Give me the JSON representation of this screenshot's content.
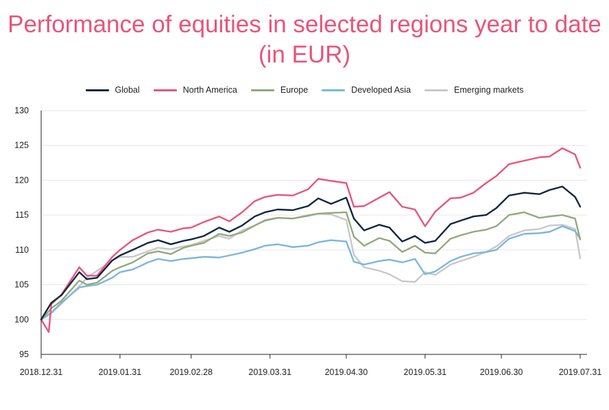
{
  "title": "Performance of equities in selected regions year to date (in EUR)",
  "chart_data": {
    "type": "line",
    "title": "Performance of equities in selected regions year to date (in EUR)",
    "xlabel": "",
    "ylabel": "",
    "x_tick_labels": [
      "2018.12.31",
      "2019.01.31",
      "2019.02.28",
      "2019.03.31",
      "2019.04.30",
      "2019.05.31",
      "2019.06.30",
      "2019.07.31"
    ],
    "x_range": [
      "2018.12.31",
      "2019.07.31"
    ],
    "ylim": [
      95,
      130
    ],
    "y_ticks": [
      95,
      100,
      105,
      110,
      115,
      120,
      125,
      130
    ],
    "grid": "horizontal",
    "legend_position": "top",
    "series": [
      {
        "name": "Global",
        "color": "#0f2640",
        "x": [
          "2018.12.31",
          "2019.01.04",
          "2019.01.08",
          "2019.01.15",
          "2019.01.18",
          "2019.01.22",
          "2019.01.28",
          "2019.01.31",
          "2019.02.05",
          "2019.02.11",
          "2019.02.15",
          "2019.02.20",
          "2019.02.25",
          "2019.02.28",
          "2019.03.05",
          "2019.03.11",
          "2019.03.15",
          "2019.03.20",
          "2019.03.25",
          "2019.03.29",
          "2019.04.03",
          "2019.04.09",
          "2019.04.15",
          "2019.04.19",
          "2019.04.24",
          "2019.04.30",
          "2019.05.03",
          "2019.05.07",
          "2019.05.13",
          "2019.05.17",
          "2019.05.22",
          "2019.05.27",
          "2019.05.31",
          "2019.06.04",
          "2019.06.10",
          "2019.06.14",
          "2019.06.19",
          "2019.06.24",
          "2019.06.28",
          "2019.07.03",
          "2019.07.09",
          "2019.07.15",
          "2019.07.19",
          "2019.07.24",
          "2019.07.29",
          "2019.07.31"
        ],
        "y": [
          100,
          102.4,
          103.5,
          106.8,
          105.8,
          106.0,
          108.5,
          109.2,
          110.0,
          111.0,
          111.4,
          110.8,
          111.3,
          111.5,
          112.0,
          113.2,
          112.6,
          113.5,
          114.8,
          115.4,
          115.8,
          115.7,
          116.3,
          117.4,
          116.6,
          117.5,
          114.5,
          112.8,
          113.6,
          113.2,
          111.2,
          112.0,
          111.0,
          111.3,
          113.7,
          114.2,
          114.8,
          115.0,
          116.0,
          117.8,
          118.2,
          118.0,
          118.6,
          119.1,
          117.6,
          116.2
        ]
      },
      {
        "name": "North America",
        "color": "#e8547a",
        "x": [
          "2018.12.31",
          "2019.01.03",
          "2019.01.04",
          "2019.01.08",
          "2019.01.15",
          "2019.01.18",
          "2019.01.22",
          "2019.01.28",
          "2019.01.31",
          "2019.02.05",
          "2019.02.11",
          "2019.02.15",
          "2019.02.20",
          "2019.02.25",
          "2019.02.28",
          "2019.03.05",
          "2019.03.11",
          "2019.03.15",
          "2019.03.20",
          "2019.03.25",
          "2019.03.29",
          "2019.04.03",
          "2019.04.09",
          "2019.04.15",
          "2019.04.19",
          "2019.04.24",
          "2019.04.30",
          "2019.05.03",
          "2019.05.07",
          "2019.05.13",
          "2019.05.17",
          "2019.05.22",
          "2019.05.27",
          "2019.05.31",
          "2019.06.04",
          "2019.06.10",
          "2019.06.14",
          "2019.06.19",
          "2019.06.24",
          "2019.06.28",
          "2019.07.03",
          "2019.07.09",
          "2019.07.15",
          "2019.07.19",
          "2019.07.24",
          "2019.07.29",
          "2019.07.31"
        ],
        "y": [
          100,
          98.2,
          102.2,
          103.6,
          107.5,
          106.3,
          106.3,
          109.0,
          110.0,
          111.4,
          112.5,
          112.9,
          112.6,
          113.1,
          113.2,
          114.0,
          114.8,
          114.1,
          115.4,
          117.0,
          117.6,
          117.9,
          117.8,
          118.7,
          120.2,
          119.9,
          119.6,
          116.2,
          116.3,
          117.5,
          118.3,
          116.2,
          115.8,
          113.4,
          115.5,
          117.4,
          117.5,
          118.2,
          119.6,
          120.6,
          122.3,
          122.8,
          123.3,
          123.4,
          124.6,
          123.7,
          121.8
        ]
      },
      {
        "name": "Europe",
        "color": "#93a97a",
        "x": [
          "2018.12.31",
          "2019.01.04",
          "2019.01.08",
          "2019.01.15",
          "2019.01.18",
          "2019.01.22",
          "2019.01.28",
          "2019.01.31",
          "2019.02.05",
          "2019.02.11",
          "2019.02.15",
          "2019.02.20",
          "2019.02.25",
          "2019.02.28",
          "2019.03.05",
          "2019.03.11",
          "2019.03.15",
          "2019.03.20",
          "2019.03.25",
          "2019.03.29",
          "2019.04.03",
          "2019.04.09",
          "2019.04.15",
          "2019.04.19",
          "2019.04.24",
          "2019.04.30",
          "2019.05.03",
          "2019.05.07",
          "2019.05.13",
          "2019.05.17",
          "2019.05.22",
          "2019.05.27",
          "2019.05.31",
          "2019.06.04",
          "2019.06.10",
          "2019.06.14",
          "2019.06.19",
          "2019.06.24",
          "2019.06.28",
          "2019.07.03",
          "2019.07.09",
          "2019.07.15",
          "2019.07.19",
          "2019.07.24",
          "2019.07.29",
          "2019.07.31"
        ],
        "y": [
          100,
          101.6,
          102.7,
          105.6,
          105.0,
          105.3,
          107.0,
          107.5,
          108.2,
          109.5,
          109.8,
          109.4,
          110.3,
          110.6,
          111.0,
          112.3,
          112.0,
          112.5,
          113.5,
          114.2,
          114.6,
          114.5,
          114.9,
          115.2,
          115.3,
          115.4,
          111.9,
          110.6,
          111.7,
          111.3,
          109.7,
          110.6,
          109.6,
          109.5,
          111.6,
          112.1,
          112.6,
          112.9,
          113.4,
          115.0,
          115.4,
          114.6,
          114.8,
          115.0,
          114.5,
          111.5
        ]
      },
      {
        "name": "Developed Asia",
        "color": "#7ab7dc",
        "x": [
          "2018.12.31",
          "2019.01.04",
          "2019.01.08",
          "2019.01.15",
          "2019.01.18",
          "2019.01.22",
          "2019.01.28",
          "2019.01.31",
          "2019.02.05",
          "2019.02.11",
          "2019.02.15",
          "2019.02.20",
          "2019.02.25",
          "2019.02.28",
          "2019.03.05",
          "2019.03.11",
          "2019.03.15",
          "2019.03.20",
          "2019.03.25",
          "2019.03.29",
          "2019.04.03",
          "2019.04.09",
          "2019.04.15",
          "2019.04.19",
          "2019.04.24",
          "2019.04.30",
          "2019.05.03",
          "2019.05.07",
          "2019.05.13",
          "2019.05.17",
          "2019.05.22",
          "2019.05.27",
          "2019.05.31",
          "2019.06.04",
          "2019.06.10",
          "2019.06.14",
          "2019.06.19",
          "2019.06.24",
          "2019.06.28",
          "2019.07.03",
          "2019.07.09",
          "2019.07.15",
          "2019.07.19",
          "2019.07.24",
          "2019.07.29",
          "2019.07.31"
        ],
        "y": [
          100,
          101.0,
          102.4,
          104.6,
          104.8,
          105.0,
          106.0,
          106.8,
          107.2,
          108.2,
          108.7,
          108.4,
          108.7,
          108.8,
          109.0,
          108.9,
          109.2,
          109.6,
          110.1,
          110.6,
          110.8,
          110.4,
          110.6,
          111.1,
          111.4,
          111.2,
          108.3,
          107.9,
          108.4,
          108.6,
          108.2,
          108.7,
          106.5,
          106.9,
          108.4,
          109.0,
          109.5,
          109.7,
          110.0,
          111.6,
          112.3,
          112.4,
          112.6,
          113.4,
          112.7,
          111.6
        ]
      },
      {
        "name": "Emerging markets",
        "color": "#c8c8c8",
        "x": [
          "2018.12.31",
          "2019.01.04",
          "2019.01.08",
          "2019.01.15",
          "2019.01.18",
          "2019.01.22",
          "2019.01.28",
          "2019.01.31",
          "2019.02.05",
          "2019.02.11",
          "2019.02.15",
          "2019.02.20",
          "2019.02.25",
          "2019.02.28",
          "2019.03.05",
          "2019.03.11",
          "2019.03.15",
          "2019.03.20",
          "2019.03.25",
          "2019.03.29",
          "2019.04.03",
          "2019.04.09",
          "2019.04.15",
          "2019.04.19",
          "2019.04.24",
          "2019.04.30",
          "2019.05.03",
          "2019.05.07",
          "2019.05.13",
          "2019.05.17",
          "2019.05.22",
          "2019.05.27",
          "2019.05.31",
          "2019.06.04",
          "2019.06.10",
          "2019.06.14",
          "2019.06.19",
          "2019.06.24",
          "2019.06.28",
          "2019.07.03",
          "2019.07.09",
          "2019.07.15",
          "2019.07.19",
          "2019.07.24",
          "2019.07.29",
          "2019.07.31"
        ],
        "y": [
          100,
          100.9,
          102.3,
          104.8,
          106.0,
          107.0,
          108.5,
          109.0,
          109.0,
          109.8,
          110.3,
          110.1,
          110.5,
          110.7,
          111.3,
          112.0,
          111.6,
          112.8,
          113.5,
          114.3,
          114.6,
          114.5,
          115.0,
          115.2,
          115.1,
          114.3,
          109.3,
          107.5,
          107.0,
          106.5,
          105.5,
          105.4,
          106.8,
          106.4,
          107.9,
          108.4,
          109.0,
          109.7,
          110.5,
          112.0,
          112.8,
          113.0,
          113.5,
          113.6,
          113.0,
          108.8
        ]
      }
    ]
  }
}
